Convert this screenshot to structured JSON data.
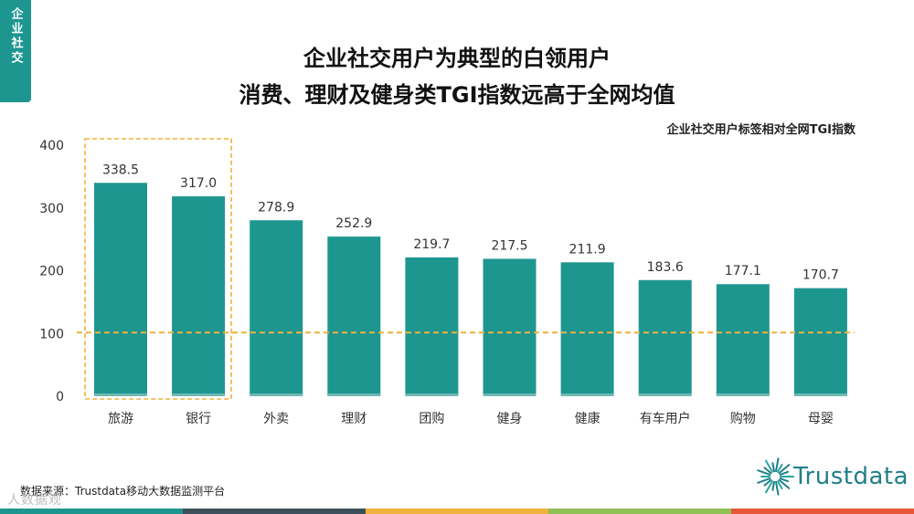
{
  "side_tab": "企业社交",
  "title_line1": "企业社交用户为典型的白领用户",
  "title_line2": "消费、理财及健身类TGI指数远高于全网均值",
  "chart_data": {
    "type": "bar",
    "title": "企业社交用户标签相对全网TGI指数",
    "categories": [
      "旅游",
      "银行",
      "外卖",
      "理财",
      "团购",
      "健身",
      "健康",
      "有车用户",
      "购物",
      "母婴"
    ],
    "values": [
      338.5,
      317.0,
      278.9,
      252.9,
      219.7,
      217.5,
      211.9,
      183.6,
      177.1,
      170.7
    ],
    "value_labels": [
      "338.5",
      "317.0",
      "278.9",
      "252.9",
      "219.7",
      "217.5",
      "211.9",
      "183.6",
      "177.1",
      "170.7"
    ],
    "ylim": [
      0,
      400
    ],
    "yticks": [
      0,
      100,
      200,
      300,
      400
    ],
    "reference_line": 100,
    "highlighted_categories": [
      "旅游",
      "银行"
    ],
    "bar_color": "#1e9690",
    "highlight_color": "#f0b23c",
    "grid": false
  },
  "source": "数据来源：Trustdata移动大数据监测平台",
  "watermark": "人数据观",
  "logo_text": "Trustdata",
  "bottom_strip_colors": [
    "#1e9690",
    "#3e4f5c",
    "#f0b23c",
    "#8fc157",
    "#e8573a"
  ]
}
